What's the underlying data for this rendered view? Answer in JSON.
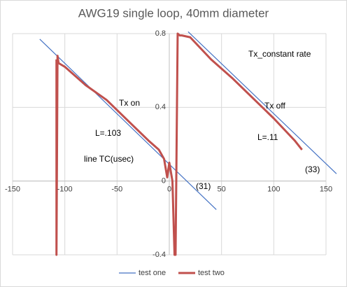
{
  "chart_data": {
    "type": "line",
    "title": "AWG19 single loop, 40mm diameter",
    "xlim": [
      -150,
      150
    ],
    "xticks": [
      -150,
      -100,
      -50,
      0,
      50,
      100,
      150
    ],
    "ylim": [
      -0.4,
      0.8
    ],
    "yticks": [
      -0.4,
      0,
      0.4,
      0.8
    ],
    "grid": true,
    "legend": "bottom",
    "annotations": [
      "Tx_constant rate",
      "Tx on",
      "Tx off",
      "L=.103",
      "L=.11",
      "line TC(usec)",
      "(31)",
      "(33)"
    ],
    "series": [
      {
        "name": "test one",
        "color": "#4472c4",
        "x": [
          -124,
          45,
          null,
          18,
          160
        ],
        "values": [
          0.77,
          -0.155,
          null,
          0.81,
          0.04
        ]
      },
      {
        "name": "test two",
        "color": "#c0504d",
        "x": [
          -108,
          -108,
          -107,
          -106,
          -100,
          -80,
          -60,
          -40,
          -20,
          -10,
          -5,
          -2,
          0,
          3,
          5,
          6,
          8,
          10,
          12,
          20,
          40,
          60,
          80,
          100,
          120,
          127
        ],
        "values": [
          0.66,
          -0.4,
          0.68,
          0.64,
          0.62,
          0.52,
          0.44,
          0.33,
          0.22,
          0.17,
          0.12,
          0.02,
          0.1,
          0.0,
          -0.4,
          -0.4,
          0.8,
          0.79,
          0.79,
          0.78,
          0.66,
          0.56,
          0.45,
          0.34,
          0.22,
          0.17
        ]
      }
    ]
  }
}
